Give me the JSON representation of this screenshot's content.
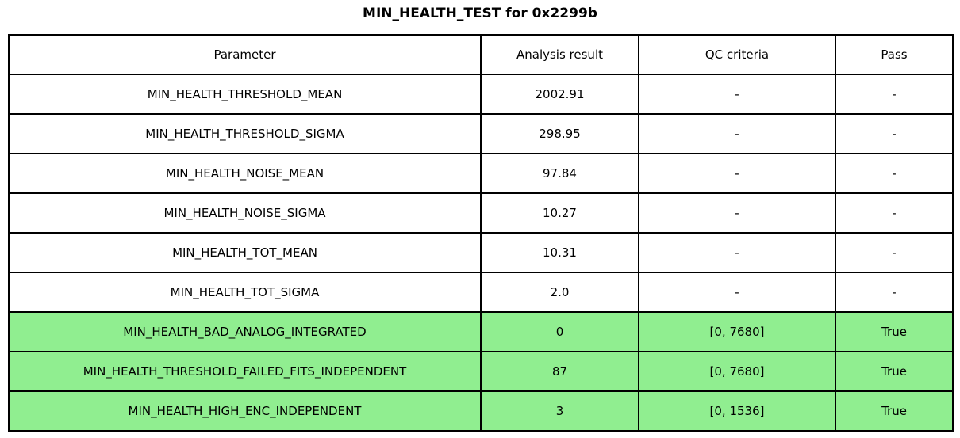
{
  "title": "MIN_HEALTH_TEST for 0x2299b",
  "colors": {
    "pass_row_bg": "#90ee90",
    "default_row_bg": "#ffffff",
    "border": "#000000",
    "text": "#000000"
  },
  "chart_data": {
    "type": "table",
    "title": "MIN_HEALTH_TEST for 0x2299b",
    "columns": [
      "Parameter",
      "Analysis result",
      "QC criteria",
      "Pass"
    ],
    "rows": [
      {
        "parameter": "MIN_HEALTH_THRESHOLD_MEAN",
        "result": "2002.91",
        "qc": "-",
        "pass": "-",
        "highlight": false
      },
      {
        "parameter": "MIN_HEALTH_THRESHOLD_SIGMA",
        "result": "298.95",
        "qc": "-",
        "pass": "-",
        "highlight": false
      },
      {
        "parameter": "MIN_HEALTH_NOISE_MEAN",
        "result": "97.84",
        "qc": "-",
        "pass": "-",
        "highlight": false
      },
      {
        "parameter": "MIN_HEALTH_NOISE_SIGMA",
        "result": "10.27",
        "qc": "-",
        "pass": "-",
        "highlight": false
      },
      {
        "parameter": "MIN_HEALTH_TOT_MEAN",
        "result": "10.31",
        "qc": "-",
        "pass": "-",
        "highlight": false
      },
      {
        "parameter": "MIN_HEALTH_TOT_SIGMA",
        "result": "2.0",
        "qc": "-",
        "pass": "-",
        "highlight": false
      },
      {
        "parameter": "MIN_HEALTH_BAD_ANALOG_INTEGRATED",
        "result": "0",
        "qc": "[0, 7680]",
        "pass": "True",
        "highlight": true
      },
      {
        "parameter": "MIN_HEALTH_THRESHOLD_FAILED_FITS_INDEPENDENT",
        "result": "87",
        "qc": "[0, 7680]",
        "pass": "True",
        "highlight": true
      },
      {
        "parameter": "MIN_HEALTH_HIGH_ENC_INDEPENDENT",
        "result": "3",
        "qc": "[0, 1536]",
        "pass": "True",
        "highlight": true
      }
    ]
  }
}
